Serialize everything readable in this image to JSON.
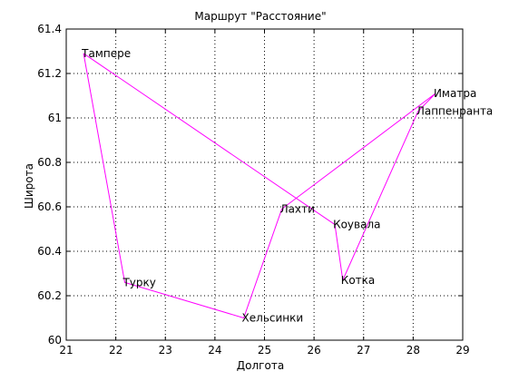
{
  "chart_data": {
    "type": "line",
    "title": "Маршрут \"Расстояние\"",
    "xlabel": "Долгота",
    "ylabel": "Широта",
    "xlim": [
      21,
      29
    ],
    "ylim": [
      60,
      61.4
    ],
    "xticks": [
      21,
      22,
      23,
      24,
      25,
      26,
      27,
      28,
      29
    ],
    "yticks": [
      60,
      60.2,
      60.4,
      60.6,
      60.8,
      61,
      61.2,
      61.4
    ],
    "xtick_labels": [
      "21",
      "22",
      "23",
      "24",
      "25",
      "26",
      "27",
      "28",
      "29"
    ],
    "ytick_labels": [
      "60",
      "60.2",
      "60.4",
      "60.6",
      "60.8",
      "61",
      "61.2",
      "61.4"
    ],
    "grid": true,
    "line_color": "#ff00ff",
    "route_order": [
      "Тампере",
      "Коувала",
      "Котка",
      "Лаппенранта",
      "Иматра",
      "Лахти",
      "Хельсинки",
      "Турку",
      "Тампере"
    ],
    "points": [
      {
        "name": "Тампере",
        "x": 21.35,
        "y": 61.29
      },
      {
        "name": "Коувала",
        "x": 26.42,
        "y": 60.52
      },
      {
        "name": "Котка",
        "x": 26.58,
        "y": 60.27
      },
      {
        "name": "Лаппенранта",
        "x": 28.1,
        "y": 61.03
      },
      {
        "name": "Иматра",
        "x": 28.45,
        "y": 61.11
      },
      {
        "name": "Лахти",
        "x": 25.35,
        "y": 60.59
      },
      {
        "name": "Хельсинки",
        "x": 24.58,
        "y": 60.1
      },
      {
        "name": "Турку",
        "x": 22.18,
        "y": 60.26
      }
    ]
  }
}
